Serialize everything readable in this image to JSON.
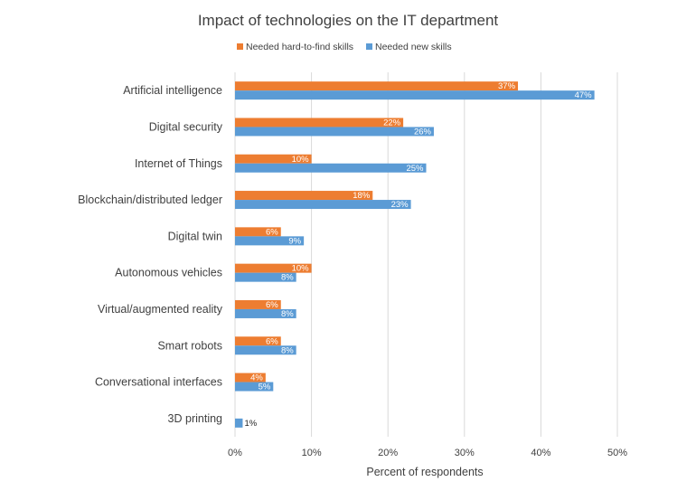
{
  "chart_data": {
    "type": "bar",
    "orientation": "horizontal",
    "title": "Impact of technologies on the IT department",
    "xlabel": "Percent of respondents",
    "ylabel": "",
    "xlim": [
      0,
      50
    ],
    "x_ticks": [
      "0%",
      "10%",
      "20%",
      "30%",
      "40%",
      "50%"
    ],
    "x_tick_values": [
      0,
      10,
      20,
      30,
      40,
      50
    ],
    "grid": true,
    "legend_position": "top",
    "categories": [
      "Artificial intelligence",
      "Digital security",
      "Internet of Things",
      "Blockchain/distributed ledger",
      "Digital twin",
      "Autonomous vehicles",
      "Virtual/augmented reality",
      "Smart robots",
      "Conversational interfaces",
      "3D printing"
    ],
    "series": [
      {
        "name": "Needed hard-to-find skills",
        "color": "#ed7d31",
        "values": [
          37,
          22,
          10,
          18,
          6,
          10,
          6,
          6,
          4,
          null
        ],
        "labels": [
          "37%",
          "22%",
          "10%",
          "18%",
          "6%",
          "10%",
          "6%",
          "6%",
          "4%",
          ""
        ]
      },
      {
        "name": "Needed new skills",
        "color": "#5b9bd5",
        "values": [
          47,
          26,
          25,
          23,
          9,
          8,
          8,
          8,
          5,
          1
        ],
        "labels": [
          "47%",
          "26%",
          "25%",
          "23%",
          "9%",
          "8%",
          "8%",
          "8%",
          "5%",
          "1%"
        ]
      }
    ]
  }
}
